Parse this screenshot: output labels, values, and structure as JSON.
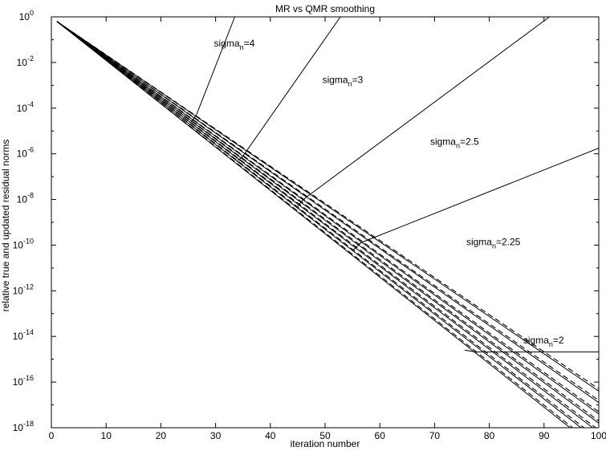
{
  "chart_data": {
    "type": "line",
    "title": "MR vs QMR smoothing",
    "xlabel": "iteration number",
    "ylabel": "relative true and updated residual norms",
    "xlim": [
      0,
      100
    ],
    "ylim_log10": [
      -18,
      0
    ],
    "yscale": "log",
    "grid": false,
    "legend": "none",
    "x_ticks": [
      "0",
      "10",
      "20",
      "30",
      "40",
      "50",
      "60",
      "70",
      "80",
      "90",
      "100"
    ],
    "y_ticks": [
      {
        "base": "10",
        "exp": "0"
      },
      {
        "base": "10",
        "exp": "-2"
      },
      {
        "base": "10",
        "exp": "-4"
      },
      {
        "base": "10",
        "exp": "-6"
      },
      {
        "base": "10",
        "exp": "-8"
      },
      {
        "base": "10",
        "exp": "-10"
      },
      {
        "base": "10",
        "exp": "-12"
      },
      {
        "base": "10",
        "exp": "-14"
      },
      {
        "base": "10",
        "exp": "-16"
      },
      {
        "base": "10",
        "exp": "-18"
      }
    ],
    "annotations": [
      {
        "prefix": "sigma",
        "sub": "n",
        "suffix": "=4",
        "x": 29.7,
        "log10y": -1.3
      },
      {
        "prefix": "sigma",
        "sub": "n",
        "suffix": "=3",
        "x": 49.5,
        "log10y": -2.9
      },
      {
        "prefix": "sigma",
        "sub": "n",
        "suffix": "=2.5",
        "x": 69.2,
        "log10y": -5.6
      },
      {
        "prefix": "sigma",
        "sub": "n",
        "suffix": "=2.25",
        "x": 75.8,
        "log10y": -10.0
      },
      {
        "prefix": "sigma",
        "sub": "n",
        "suffix": "=2",
        "x": 86.2,
        "log10y": -14.3
      }
    ],
    "series": [
      {
        "style": "solid",
        "x": [
          1,
          100
        ],
        "log10y": [
          -0.2,
          -19.0
        ]
      },
      {
        "style": "solid",
        "x": [
          1,
          100
        ],
        "log10y": [
          -0.2,
          -18.6
        ]
      },
      {
        "style": "solid",
        "x": [
          1,
          100
        ],
        "log10y": [
          -0.2,
          -18.2
        ]
      },
      {
        "style": "solid",
        "x": [
          1,
          100
        ],
        "log10y": [
          -0.2,
          -17.8
        ]
      },
      {
        "style": "solid",
        "x": [
          1,
          100
        ],
        "log10y": [
          -0.2,
          -17.4
        ]
      },
      {
        "style": "solid",
        "x": [
          1,
          100
        ],
        "log10y": [
          -0.2,
          -16.9
        ]
      },
      {
        "style": "solid",
        "x": [
          1,
          100
        ],
        "log10y": [
          -0.2,
          -16.4
        ]
      },
      {
        "style": "dashed",
        "x": [
          1,
          100
        ],
        "log10y": [
          -0.2,
          -18.9
        ]
      },
      {
        "style": "dashed",
        "x": [
          1,
          100
        ],
        "log10y": [
          -0.2,
          -18.5
        ]
      },
      {
        "style": "dashed",
        "x": [
          1,
          100
        ],
        "log10y": [
          -0.2,
          -18.1
        ]
      },
      {
        "style": "dashed",
        "x": [
          1,
          100
        ],
        "log10y": [
          -0.2,
          -17.7
        ]
      },
      {
        "style": "dashed",
        "x": [
          1,
          100
        ],
        "log10y": [
          -0.2,
          -17.3
        ]
      },
      {
        "style": "dashed",
        "x": [
          1,
          100
        ],
        "log10y": [
          -0.2,
          -16.8
        ]
      },
      {
        "style": "dashed",
        "x": [
          1,
          100
        ],
        "log10y": [
          -0.2,
          -16.3
        ]
      },
      {
        "style": "solid",
        "name_ref": "sigma_n=4",
        "x": [
          25.5,
          26.5,
          33.5
        ],
        "log10y": [
          -4.6,
          -4.3,
          0.0
        ]
      },
      {
        "style": "solid",
        "name_ref": "sigma_n=3",
        "x": [
          34.0,
          35.0,
          52.8
        ],
        "log10y": [
          -6.3,
          -6.1,
          0.0
        ]
      },
      {
        "style": "solid",
        "name_ref": "sigma_n=2.5",
        "x": [
          45.0,
          46.0,
          91.0
        ],
        "log10y": [
          -8.3,
          -8.0,
          0.0
        ]
      },
      {
        "style": "solid",
        "name_ref": "sigma_n=2.25",
        "x": [
          55.2,
          56.5,
          100.0
        ],
        "log10y": [
          -10.2,
          -9.9,
          -5.75
        ]
      },
      {
        "style": "solid",
        "name_ref": "sigma_n=2",
        "x": [
          75.5,
          77.5,
          100.0
        ],
        "log10y": [
          -14.6,
          -14.68,
          -14.68
        ]
      }
    ]
  }
}
